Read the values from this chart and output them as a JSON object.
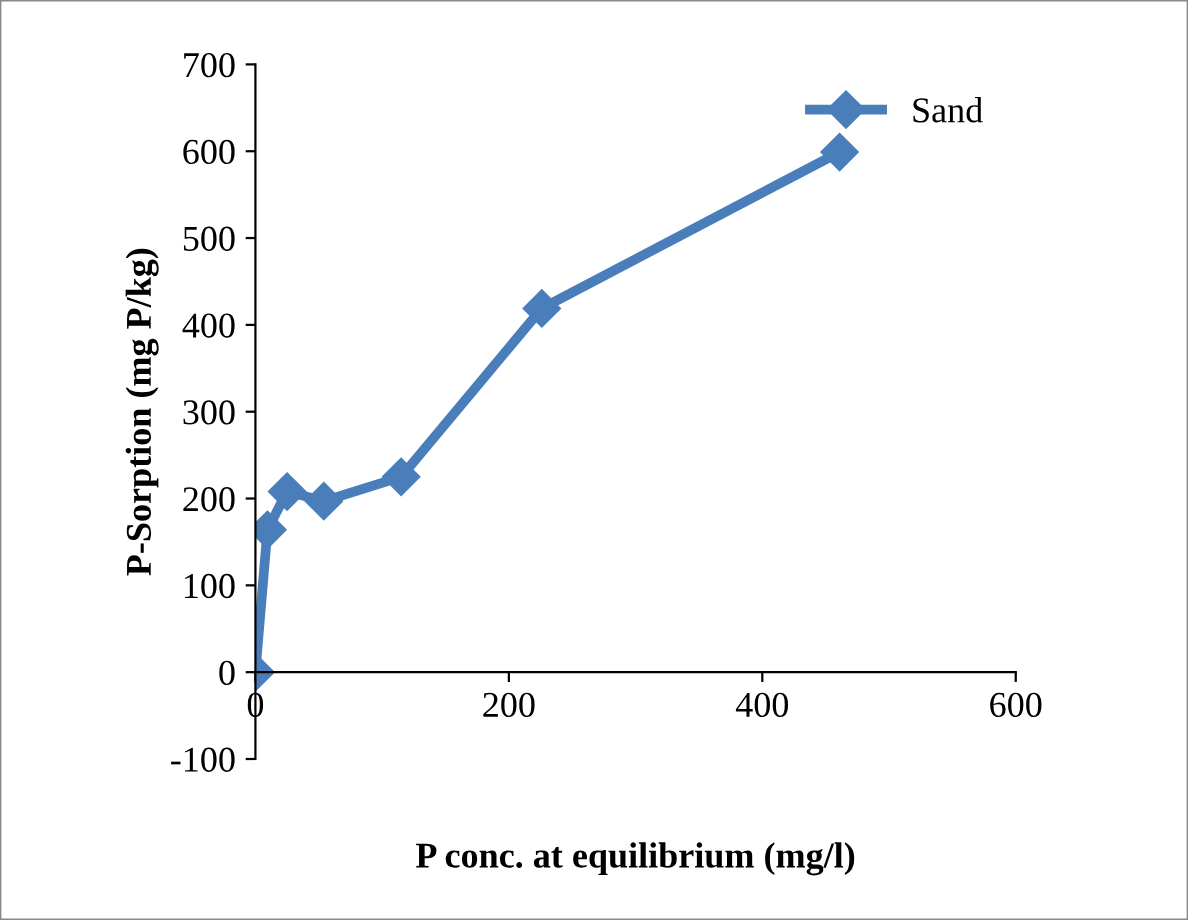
{
  "chart_data": {
    "type": "line",
    "xlabel": "P conc. at equilibrium (mg/l)",
    "ylabel": "P-Sorption (mg P/kg)",
    "x": [
      0,
      9.5,
      25,
      54,
      115,
      226,
      461
    ],
    "series": [
      {
        "name": "Sand",
        "color": "#4a7ebb",
        "values": [
          0,
          164,
          208,
          197,
          225,
          419,
          599
        ]
      }
    ],
    "xlim": [
      0,
      600
    ],
    "xticks": [
      0,
      200,
      400,
      600
    ],
    "ylim": [
      -100,
      700
    ],
    "yticks": [
      -100,
      0,
      100,
      200,
      300,
      400,
      500,
      600,
      700
    ],
    "marker": "diamond",
    "line_style": "solid",
    "legend": "top right",
    "grid": false
  }
}
